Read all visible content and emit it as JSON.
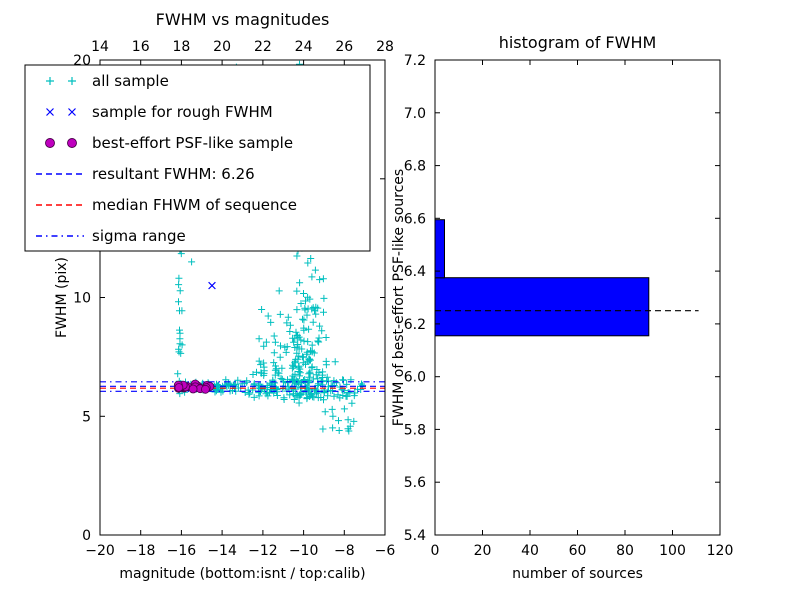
{
  "window": {
    "background": "#ffffff"
  },
  "chart_data": [
    {
      "type": "scatter",
      "title": "FWHM vs magnitudes",
      "xlabel": "magnitude (bottom:isnt / top:calib)",
      "ylabel": "FWHM (pix)",
      "x_bottom": {
        "min": -20,
        "max": -6,
        "ticks": [
          -20,
          -18,
          -16,
          -14,
          -12,
          -10,
          -8,
          -6
        ],
        "tick_labels": [
          "−20",
          "−18",
          "−16",
          "−14",
          "−12",
          "−10",
          "−8",
          "−6"
        ]
      },
      "x_top": {
        "min": 14,
        "max": 28,
        "ticks": [
          14,
          16,
          18,
          20,
          22,
          24,
          26,
          28
        ],
        "tick_labels": [
          "14",
          "16",
          "18",
          "20",
          "22",
          "24",
          "26",
          "28"
        ]
      },
      "y": {
        "min": 0,
        "max": 20,
        "ticks": [
          0,
          5,
          10,
          15,
          20
        ],
        "tick_labels": [
          "0",
          "5",
          "10",
          "15",
          "20"
        ]
      },
      "rng_seed": 42,
      "series": {
        "all_sample": {
          "label": "all sample",
          "marker": "plus",
          "color": "#00bfbf",
          "clusters": [
            {
              "n": 75,
              "mag": [
                "uniform",
                -16.2,
                -13.0
              ],
              "fwhm": [
                "normal",
                6.25,
                0.13
              ]
            },
            {
              "n": 120,
              "mag": [
                "uniform",
                -13.0,
                -7.1
              ],
              "fwhm": [
                "normal",
                6.2,
                0.28
              ]
            },
            {
              "n": 150,
              "mag": [
                "normal",
                -10.0,
                0.6
              ],
              "fwhm": [
                "halfnormal",
                5.7,
                2.4
              ]
            },
            {
              "n": 40,
              "mag": [
                "uniform",
                -12.3,
                -10.8
              ],
              "fwhm": [
                "halfnormal",
                5.9,
                1.5
              ]
            },
            {
              "n": 26,
              "mag": [
                "normal",
                -10.1,
                0.35
              ],
              "fwhm": [
                "uniform",
                10.0,
                19.2
              ]
            },
            {
              "n": 9,
              "mag": [
                "uniform",
                -10.9,
                -9.6
              ],
              "fwhm": [
                "uniform",
                18.7,
                20.4
              ]
            },
            {
              "n": 18,
              "mag": [
                "normal",
                -16.1,
                0.08
              ],
              "fwhm": [
                "uniform",
                6.5,
                12.3
              ]
            },
            {
              "n": 13,
              "mag": [
                "uniform",
                -9.2,
                -7.2
              ],
              "fwhm": [
                "uniform",
                4.35,
                5.7
              ]
            }
          ],
          "extra_points": [
            [
              -13.3,
              19.7
            ],
            [
              -15.5,
              11.5
            ],
            [
              -8.25,
              4.4
            ],
            [
              -7.1,
              6.3
            ]
          ]
        },
        "rough_fwhm": {
          "label": "sample for rough FWHM",
          "marker": "x",
          "color": "#0000ff",
          "points": [
            [
              -14.5,
              10.5
            ]
          ]
        },
        "psf_like": {
          "label": "best-effort PSF-like sample",
          "marker": "circle",
          "color": "#bf00bf",
          "edge_color": "#4b004b",
          "cluster": {
            "n": 24,
            "mag": [
              "uniform",
              -16.2,
              -14.5
            ],
            "fwhm": [
              "normal",
              6.21,
              0.055
            ]
          }
        },
        "resultant_fwhm": {
          "label": "resultant FWHM: 6.26",
          "style": "dashed",
          "color": "#0000ff",
          "value": 6.26
        },
        "median_fwhm": {
          "label": "median FHWM of sequence",
          "style": "dashed",
          "color": "#ff0000",
          "value": 6.18
        },
        "sigma_range": {
          "label": "sigma range",
          "style": "dashdot",
          "color": "#0000ff",
          "values": [
            6.05,
            6.45
          ]
        }
      },
      "legend": {
        "order": [
          "all_sample",
          "rough_fwhm",
          "psf_like",
          "resultant_fwhm",
          "median_fwhm",
          "sigma_range"
        ]
      }
    },
    {
      "type": "barh",
      "title": "histogram of FWHM",
      "xlabel": "number of sources",
      "ylabel": "FWHM of best-effort PSF-like sources",
      "x": {
        "min": 0,
        "max": 120,
        "ticks": [
          0,
          20,
          40,
          60,
          80,
          100,
          120
        ],
        "tick_labels": [
          "0",
          "20",
          "40",
          "60",
          "80",
          "100",
          "120"
        ]
      },
      "y": {
        "min": 5.4,
        "max": 7.2,
        "ticks": [
          5.4,
          5.6,
          5.8,
          6.0,
          6.2,
          6.4,
          6.6,
          6.8,
          7.0,
          7.2
        ],
        "tick_labels": [
          "5.4",
          "5.6",
          "5.8",
          "6.0",
          "6.2",
          "6.4",
          "6.6",
          "6.8",
          "7.0",
          "7.2"
        ]
      },
      "bars": [
        {
          "from": 6.155,
          "to": 6.375,
          "count": 90
        },
        {
          "from": 6.375,
          "to": 6.595,
          "count": 4
        }
      ],
      "bar_color": "#0000ff",
      "bar_edge_color": "#000000",
      "median_line": {
        "value": 6.25,
        "x_start": 0,
        "x_end": 111,
        "color": "#000000",
        "style": "dashed"
      }
    }
  ]
}
